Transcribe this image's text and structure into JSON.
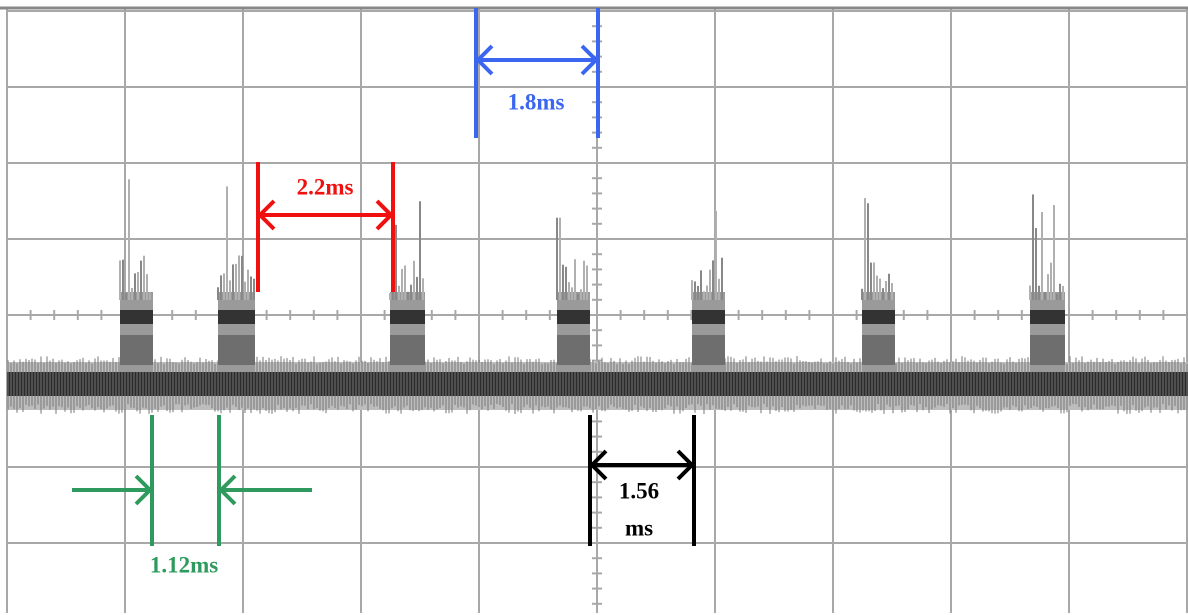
{
  "annotations": {
    "blue": {
      "label": "1.8ms"
    },
    "red": {
      "label": "2.2ms"
    },
    "black": {
      "label_lines": [
        "1.56",
        "ms"
      ]
    },
    "green": {
      "label": "1.12ms"
    }
  }
}
